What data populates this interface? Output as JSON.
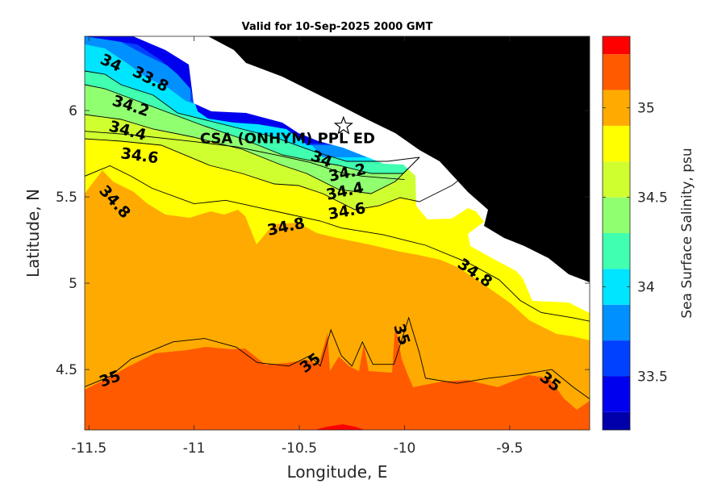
{
  "chart_data": {
    "type": "contour",
    "title": "Valid for 10-Sep-2025 2000 GMT",
    "xlabel": "Longitude, E",
    "ylabel": "Latitude, N",
    "xlim": [
      -11.52,
      -9.12
    ],
    "ylim": [
      4.15,
      6.43
    ],
    "x_ticks": [
      -11.5,
      -11,
      -10.5,
      -10,
      -9.5
    ],
    "x_tick_labels": [
      "-11.5",
      "-11",
      "-10.5",
      "-10",
      "-9.5"
    ],
    "y_ticks": [
      4.5,
      5,
      5.5,
      6
    ],
    "y_tick_labels": [
      "4.5",
      "5",
      "5.5",
      "6"
    ],
    "colorbar": {
      "label": "Sea Surface Salinity, psu",
      "clim": [
        33.2,
        35.4
      ],
      "ticks": [
        33.5,
        34,
        34.5,
        35
      ],
      "tick_labels": [
        "33.5",
        "34",
        "34.5",
        "35"
      ],
      "levels": [
        {
          "range": [
            33.2,
            33.3
          ],
          "color": "#0000AA"
        },
        {
          "range": [
            33.3,
            33.5
          ],
          "color": "#0000EE"
        },
        {
          "range": [
            33.5,
            33.7
          ],
          "color": "#0040FF"
        },
        {
          "range": [
            33.7,
            33.9
          ],
          "color": "#0090FF"
        },
        {
          "range": [
            33.9,
            34.1
          ],
          "color": "#00E5FF"
        },
        {
          "range": [
            34.1,
            34.3
          ],
          "color": "#40FFB0"
        },
        {
          "range": [
            34.3,
            34.5
          ],
          "color": "#90FF70"
        },
        {
          "range": [
            34.5,
            34.7
          ],
          "color": "#D0FF30"
        },
        {
          "range": [
            34.7,
            34.9
          ],
          "color": "#FFFF00"
        },
        {
          "range": [
            34.9,
            35.1
          ],
          "color": "#FFAA00"
        },
        {
          "range": [
            35.1,
            35.3
          ],
          "color": "#FF5A00"
        },
        {
          "range": [
            35.3,
            35.4
          ],
          "color": "#FF0000"
        }
      ]
    },
    "contours": [
      {
        "level": 34.6,
        "points": [
          [
            -11.52,
            5.88
          ],
          [
            -11.3,
            5.86
          ],
          [
            -11.0,
            5.82
          ],
          [
            -10.8,
            5.79
          ],
          [
            -10.6,
            5.74
          ],
          [
            -10.45,
            5.7
          ],
          [
            -10.3,
            5.64
          ],
          [
            -10.2,
            5.62
          ],
          [
            -10.0,
            5.6
          ]
        ]
      },
      {
        "level": 34.8,
        "points": [
          [
            -11.52,
            5.62
          ],
          [
            -11.4,
            5.68
          ],
          [
            -11.3,
            5.62
          ],
          [
            -11.2,
            5.55
          ],
          [
            -11.0,
            5.46
          ],
          [
            -10.85,
            5.48
          ],
          [
            -10.7,
            5.44
          ],
          [
            -10.55,
            5.4
          ],
          [
            -10.4,
            5.36
          ],
          [
            -10.3,
            5.32
          ],
          [
            -10.1,
            5.28
          ],
          [
            -9.9,
            5.22
          ],
          [
            -9.7,
            5.12
          ],
          [
            -9.55,
            5.02
          ],
          [
            -9.45,
            4.9
          ],
          [
            -9.35,
            4.83
          ],
          [
            -9.2,
            4.8
          ],
          [
            -9.12,
            4.78
          ]
        ]
      },
      {
        "level": 35.0,
        "points": [
          [
            -11.52,
            4.4
          ],
          [
            -11.4,
            4.46
          ],
          [
            -11.3,
            4.56
          ],
          [
            -11.1,
            4.66
          ],
          [
            -10.95,
            4.68
          ],
          [
            -10.8,
            4.63
          ],
          [
            -10.7,
            4.54
          ],
          [
            -10.55,
            4.52
          ],
          [
            -10.45,
            4.58
          ],
          [
            -10.4,
            4.52
          ],
          [
            -10.35,
            4.73
          ],
          [
            -10.3,
            4.58
          ],
          [
            -10.25,
            4.52
          ],
          [
            -10.2,
            4.66
          ],
          [
            -10.15,
            4.53
          ],
          [
            -10.05,
            4.53
          ],
          [
            -9.98,
            4.8
          ],
          [
            -9.93,
            4.6
          ],
          [
            -9.9,
            4.45
          ],
          [
            -9.75,
            4.42
          ],
          [
            -9.6,
            4.45
          ],
          [
            -9.45,
            4.47
          ],
          [
            -9.3,
            4.5
          ],
          [
            -9.2,
            4.4
          ],
          [
            -9.12,
            4.33
          ]
        ]
      }
    ],
    "contour_labels": [
      "34",
      "33.8",
      "34.2",
      "34.4",
      "34.6",
      "34.8",
      "34",
      "34.2",
      "34.4",
      "34.6",
      "34.8",
      "34.8",
      "35",
      "35",
      "35",
      "35"
    ],
    "annotations": [
      {
        "text": "CSA (ONHYM) PPL ED",
        "marker": "star",
        "lon": -10.29,
        "lat": 5.91
      }
    ],
    "land_color": "#000000",
    "missing_data_color": "#FFFFFF"
  }
}
